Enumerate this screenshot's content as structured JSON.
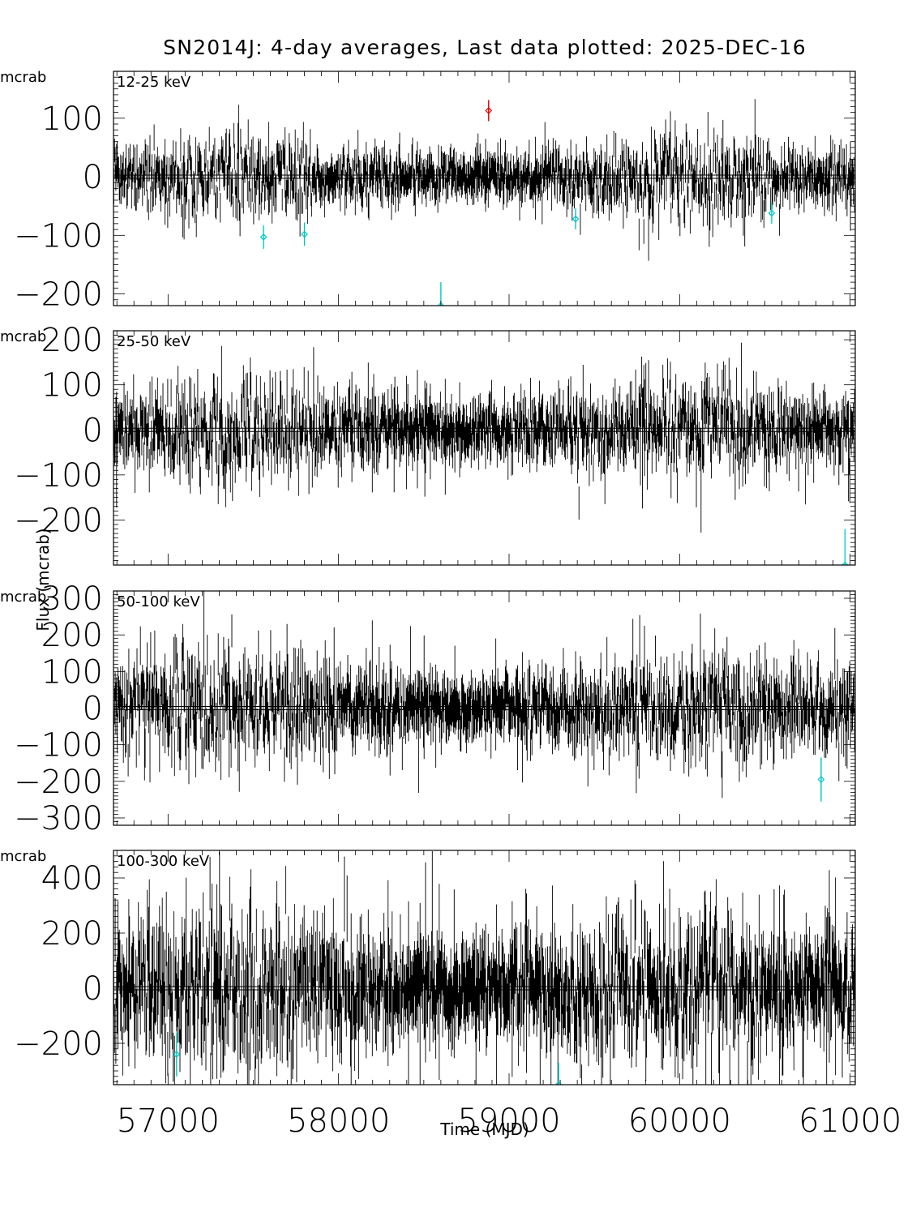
{
  "chart_data": [
    {
      "type": "scatter",
      "title": "SN2014J:  4-day averages,  Last data plotted: 2025-DEC-16",
      "band": "12-25 keV",
      "unit": "mcrab",
      "xlim": [
        56680,
        61030
      ],
      "ylim": [
        -220,
        180
      ],
      "yticks": [
        -200,
        -100,
        0,
        100
      ],
      "noise_sigma": 30,
      "typical_error": 25,
      "highlighted_points": [
        {
          "x": 57560,
          "y": -103,
          "err": 20,
          "color": "#00c8c8"
        },
        {
          "x": 57800,
          "y": -98,
          "err": 20,
          "color": "#00c8c8"
        },
        {
          "x": 58600,
          "y": -220,
          "err": 40,
          "color": "#00c8c8"
        },
        {
          "x": 58880,
          "y": 113,
          "err": 18,
          "color": "#e00000"
        },
        {
          "x": 59390,
          "y": -72,
          "err": 18,
          "color": "#00c8c8"
        },
        {
          "x": 60540,
          "y": -62,
          "err": 18,
          "color": "#00c8c8"
        }
      ]
    },
    {
      "type": "scatter",
      "band": "25-50 keV",
      "unit": "mcrab",
      "xlim": [
        56680,
        61030
      ],
      "ylim": [
        -300,
        220
      ],
      "yticks": [
        -200,
        -100,
        0,
        100,
        200
      ],
      "noise_sigma": 45,
      "typical_error": 40,
      "highlighted_points": [
        {
          "x": 60970,
          "y": -300,
          "err": 80,
          "color": "#00c8c8"
        }
      ]
    },
    {
      "type": "scatter",
      "band": "50-100 keV",
      "unit": "mcrab",
      "xlim": [
        56680,
        61030
      ],
      "ylim": [
        -320,
        320
      ],
      "yticks": [
        -300,
        -200,
        -100,
        0,
        100,
        200,
        300
      ],
      "noise_sigma": 65,
      "typical_error": 55,
      "highlighted_points": [
        {
          "x": 60830,
          "y": -195,
          "err": 60,
          "color": "#00c8c8"
        }
      ]
    },
    {
      "type": "scatter",
      "band": "100-300 keV",
      "unit": "mcrab",
      "xlim": [
        56680,
        61030
      ],
      "ylim": [
        -350,
        500
      ],
      "yticks": [
        -200,
        0,
        200,
        400
      ],
      "noise_sigma": 120,
      "typical_error": 110,
      "highlighted_points": [
        {
          "x": 57050,
          "y": -240,
          "err": 80,
          "color": "#00c8c8"
        },
        {
          "x": 59290,
          "y": -350,
          "err": 80,
          "color": "#00c8c8"
        }
      ]
    }
  ],
  "xaxis": {
    "label": "Time (MJD)",
    "ticks": [
      57000,
      58000,
      59000,
      60000,
      61000
    ]
  },
  "yaxis_label": "Flux (mcrab)",
  "data_interval_days": 4,
  "series_color": "#000000"
}
